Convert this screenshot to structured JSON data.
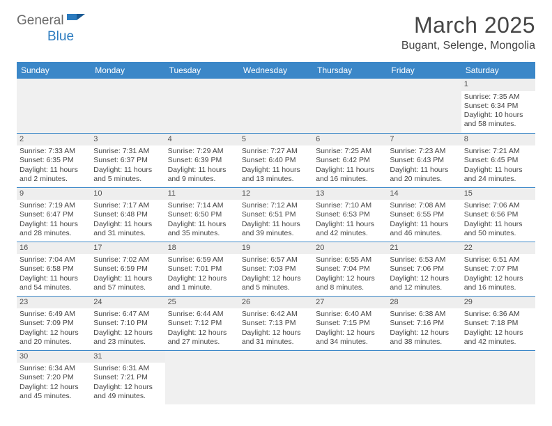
{
  "logo": {
    "textA": "General",
    "textB": "Blue"
  },
  "title": "March 2025",
  "location": "Bugant, Selenge, Mongolia",
  "colors": {
    "headerBg": "#3b87c8",
    "headerText": "#ffffff",
    "bodyText": "#454545",
    "logoGray": "#6a6a6a",
    "logoBlue": "#2b7bbf",
    "dayStripe": "#eeeeee",
    "rowBorder": "#3b87c8"
  },
  "weekdays": [
    "Sunday",
    "Monday",
    "Tuesday",
    "Wednesday",
    "Thursday",
    "Friday",
    "Saturday"
  ],
  "days": {
    "1": {
      "sunrise": "7:35 AM",
      "sunset": "6:34 PM",
      "daylight": "10 hours and 58 minutes."
    },
    "2": {
      "sunrise": "7:33 AM",
      "sunset": "6:35 PM",
      "daylight": "11 hours and 2 minutes."
    },
    "3": {
      "sunrise": "7:31 AM",
      "sunset": "6:37 PM",
      "daylight": "11 hours and 5 minutes."
    },
    "4": {
      "sunrise": "7:29 AM",
      "sunset": "6:39 PM",
      "daylight": "11 hours and 9 minutes."
    },
    "5": {
      "sunrise": "7:27 AM",
      "sunset": "6:40 PM",
      "daylight": "11 hours and 13 minutes."
    },
    "6": {
      "sunrise": "7:25 AM",
      "sunset": "6:42 PM",
      "daylight": "11 hours and 16 minutes."
    },
    "7": {
      "sunrise": "7:23 AM",
      "sunset": "6:43 PM",
      "daylight": "11 hours and 20 minutes."
    },
    "8": {
      "sunrise": "7:21 AM",
      "sunset": "6:45 PM",
      "daylight": "11 hours and 24 minutes."
    },
    "9": {
      "sunrise": "7:19 AM",
      "sunset": "6:47 PM",
      "daylight": "11 hours and 28 minutes."
    },
    "10": {
      "sunrise": "7:17 AM",
      "sunset": "6:48 PM",
      "daylight": "11 hours and 31 minutes."
    },
    "11": {
      "sunrise": "7:14 AM",
      "sunset": "6:50 PM",
      "daylight": "11 hours and 35 minutes."
    },
    "12": {
      "sunrise": "7:12 AM",
      "sunset": "6:51 PM",
      "daylight": "11 hours and 39 minutes."
    },
    "13": {
      "sunrise": "7:10 AM",
      "sunset": "6:53 PM",
      "daylight": "11 hours and 42 minutes."
    },
    "14": {
      "sunrise": "7:08 AM",
      "sunset": "6:55 PM",
      "daylight": "11 hours and 46 minutes."
    },
    "15": {
      "sunrise": "7:06 AM",
      "sunset": "6:56 PM",
      "daylight": "11 hours and 50 minutes."
    },
    "16": {
      "sunrise": "7:04 AM",
      "sunset": "6:58 PM",
      "daylight": "11 hours and 54 minutes."
    },
    "17": {
      "sunrise": "7:02 AM",
      "sunset": "6:59 PM",
      "daylight": "11 hours and 57 minutes."
    },
    "18": {
      "sunrise": "6:59 AM",
      "sunset": "7:01 PM",
      "daylight": "12 hours and 1 minute."
    },
    "19": {
      "sunrise": "6:57 AM",
      "sunset": "7:03 PM",
      "daylight": "12 hours and 5 minutes."
    },
    "20": {
      "sunrise": "6:55 AM",
      "sunset": "7:04 PM",
      "daylight": "12 hours and 8 minutes."
    },
    "21": {
      "sunrise": "6:53 AM",
      "sunset": "7:06 PM",
      "daylight": "12 hours and 12 minutes."
    },
    "22": {
      "sunrise": "6:51 AM",
      "sunset": "7:07 PM",
      "daylight": "12 hours and 16 minutes."
    },
    "23": {
      "sunrise": "6:49 AM",
      "sunset": "7:09 PM",
      "daylight": "12 hours and 20 minutes."
    },
    "24": {
      "sunrise": "6:47 AM",
      "sunset": "7:10 PM",
      "daylight": "12 hours and 23 minutes."
    },
    "25": {
      "sunrise": "6:44 AM",
      "sunset": "7:12 PM",
      "daylight": "12 hours and 27 minutes."
    },
    "26": {
      "sunrise": "6:42 AM",
      "sunset": "7:13 PM",
      "daylight": "12 hours and 31 minutes."
    },
    "27": {
      "sunrise": "6:40 AM",
      "sunset": "7:15 PM",
      "daylight": "12 hours and 34 minutes."
    },
    "28": {
      "sunrise": "6:38 AM",
      "sunset": "7:16 PM",
      "daylight": "12 hours and 38 minutes."
    },
    "29": {
      "sunrise": "6:36 AM",
      "sunset": "7:18 PM",
      "daylight": "12 hours and 42 minutes."
    },
    "30": {
      "sunrise": "6:34 AM",
      "sunset": "7:20 PM",
      "daylight": "12 hours and 45 minutes."
    },
    "31": {
      "sunrise": "6:31 AM",
      "sunset": "7:21 PM",
      "daylight": "12 hours and 49 minutes."
    }
  },
  "labels": {
    "sunrise": "Sunrise:",
    "sunset": "Sunset:",
    "daylight": "Daylight:"
  },
  "grid": {
    "startOffset": 6,
    "totalDays": 31,
    "rows": 6,
    "cols": 7
  }
}
